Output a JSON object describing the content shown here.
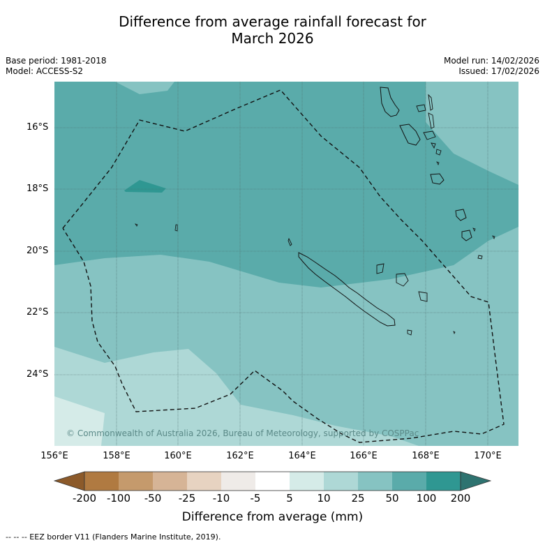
{
  "title_line1": "Difference from average rainfall forecast for",
  "title_line2": "March 2026",
  "meta_left": {
    "base_period": "Base period: 1981-2018",
    "model": "Model: ACCESS-S2"
  },
  "meta_right": {
    "model_run": "Model run: 14/02/2026",
    "issued": "Issued: 17/02/2026"
  },
  "map": {
    "lat_labels": [
      "16°S",
      "18°S",
      "20°S",
      "22°S",
      "24°S"
    ],
    "lon_labels": [
      "156°E",
      "158°E",
      "160°E",
      "162°E",
      "164°E",
      "166°E",
      "168°E",
      "170°E"
    ],
    "copyright": "© Commonwealth of Australia 2026, Bureau of Meteorology, supported by COSPPac"
  },
  "colorbar": {
    "labels": [
      "-200",
      "-100",
      "-50",
      "-25",
      "-10",
      "-5",
      "5",
      "10",
      "25",
      "50",
      "100",
      "200"
    ],
    "colors": [
      "#8c5a2a",
      "#b07a41",
      "#c59a6c",
      "#d6b496",
      "#e7d3c1",
      "#efebe8",
      "#ffffff",
      "#d5ebe8",
      "#aed8d6",
      "#86c3c2",
      "#5aabaa",
      "#2f9792",
      "#2e7370"
    ],
    "title": "Difference from average (mm)"
  },
  "footnote": "--  --  -- EEZ border V11 (Flanders Marine Institute, 2019).",
  "colors": {
    "cat_10_25": "#aed8d6",
    "cat_25_50": "#86c3c2",
    "cat_50_100": "#5aabaa",
    "cat_100_200": "#2f9792",
    "cat_5_10": "#d5ebe8"
  }
}
